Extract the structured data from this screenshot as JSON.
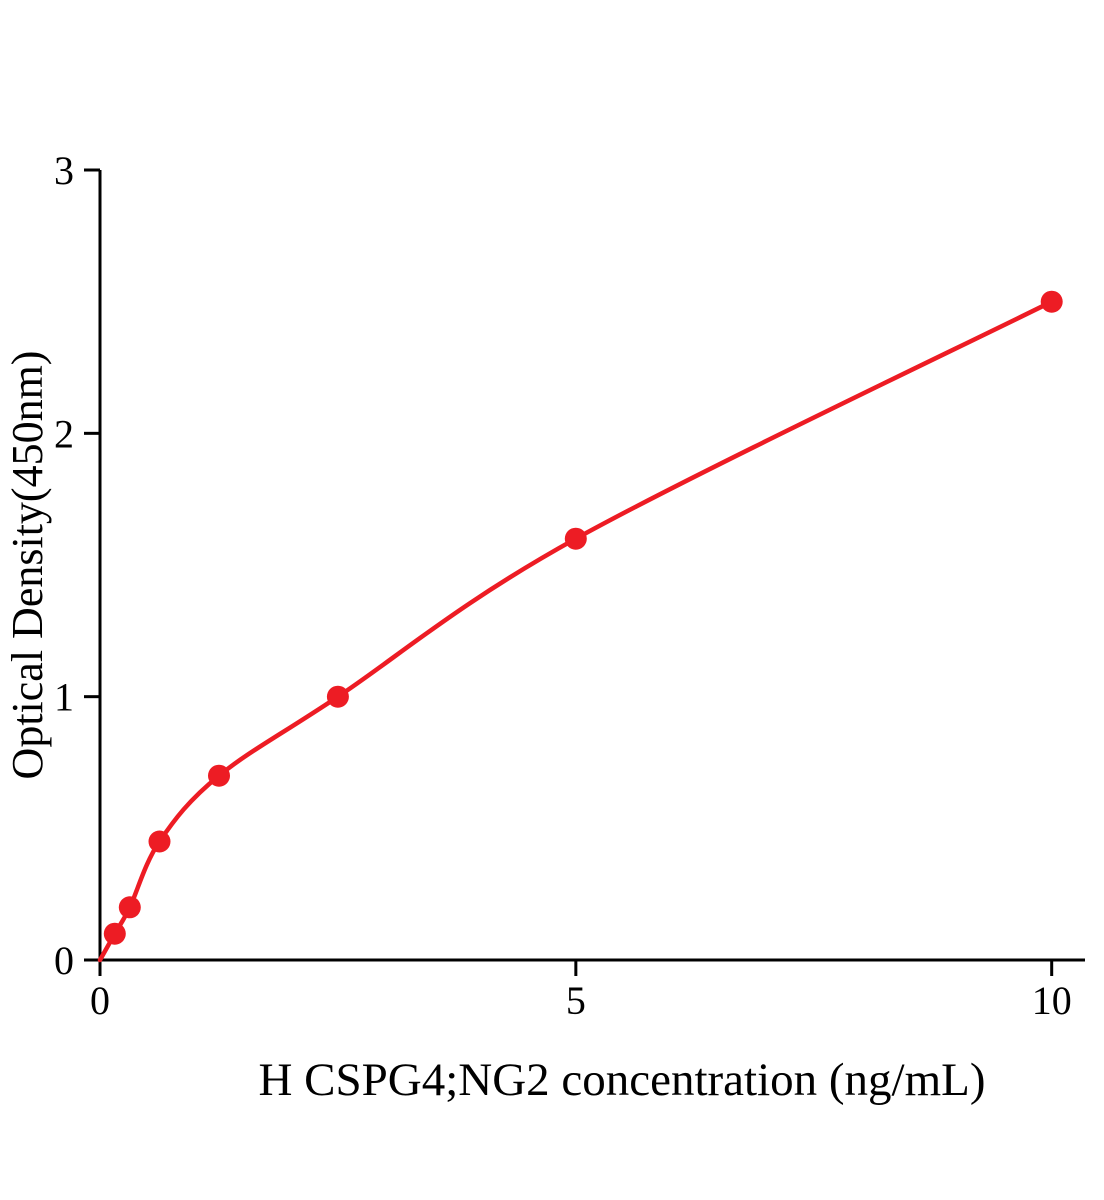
{
  "chart_data": {
    "type": "scatter",
    "title": "",
    "xlabel": "H CSPG4;NG2 concentration (ng/mL)",
    "ylabel": "Optical Density(450nm)",
    "x": [
      0.156,
      0.313,
      0.625,
      1.25,
      2.5,
      5,
      10
    ],
    "y": [
      0.1,
      0.2,
      0.45,
      0.7,
      1.0,
      1.6,
      2.5
    ],
    "xlim": [
      0,
      10.35
    ],
    "ylim": [
      0,
      3
    ],
    "xticks": [
      0,
      5,
      10
    ],
    "yticks": [
      0,
      1,
      2,
      3
    ],
    "grid": false,
    "legend_position": "none",
    "point_color": "#ed1c24",
    "line_color": "#ed1c24",
    "axis_color": "#000000",
    "fit_curve": {
      "present": true,
      "style": "smooth-through-points",
      "starts_at_origin": true
    }
  }
}
